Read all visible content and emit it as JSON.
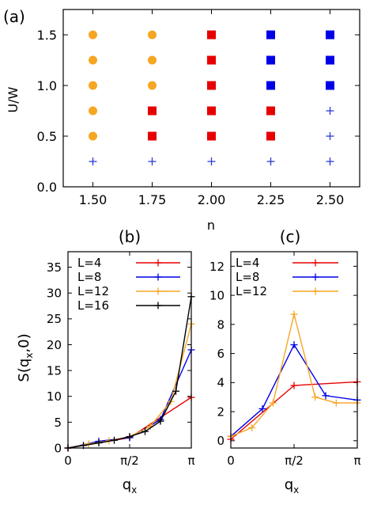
{
  "chart_data": [
    {
      "type": "scatter",
      "panel_label": "(a)",
      "xlabel": "n",
      "ylabel": "U/W",
      "xlim": [
        1.375,
        2.625
      ],
      "ylim": [
        0.0,
        1.75
      ],
      "xticks": [
        "1.50",
        "1.75",
        "2.00",
        "2.25",
        "2.50"
      ],
      "xtick_values": [
        1.5,
        1.75,
        2.0,
        2.25,
        2.5
      ],
      "yticks": [
        "0.0",
        "0.5",
        "1.0",
        "1.5"
      ],
      "ytick_values": [
        0.0,
        0.5,
        1.0,
        1.5
      ],
      "grid": false,
      "legend": "none",
      "series": [
        {
          "marker": "circle",
          "color": "#f5a623",
          "x": [
            1.5,
            1.5,
            1.5,
            1.5,
            1.5,
            1.75,
            1.75,
            1.75
          ],
          "y": [
            0.5,
            0.75,
            1.0,
            1.25,
            1.5,
            1.0,
            1.25,
            1.5
          ]
        },
        {
          "marker": "square",
          "color": "#e60000",
          "x": [
            1.75,
            1.75,
            2.0,
            2.0,
            2.0,
            2.0,
            2.0,
            2.25,
            2.25
          ],
          "y": [
            0.5,
            0.75,
            0.5,
            0.75,
            1.0,
            1.25,
            1.5,
            0.5,
            0.75
          ]
        },
        {
          "marker": "square",
          "color": "#0000e6",
          "x": [
            2.25,
            2.25,
            2.25,
            2.5,
            2.5,
            2.5
          ],
          "y": [
            1.0,
            1.25,
            1.5,
            1.0,
            1.25,
            1.5
          ]
        },
        {
          "marker": "plus",
          "color": "#2a3bcf",
          "x": [
            1.5,
            1.75,
            2.0,
            2.25,
            2.5,
            2.5,
            2.5
          ],
          "y": [
            0.25,
            0.25,
            0.25,
            0.25,
            0.25,
            0.5,
            0.75
          ]
        }
      ]
    },
    {
      "type": "line",
      "panel_label": "(b)",
      "xlabel_main": "q",
      "xlabel_sub": "x",
      "ylabel": "S(q",
      "ylabel_sub": "x",
      "ylabel_tail": ",0)",
      "xlim": [
        0,
        1
      ],
      "ylim": [
        0,
        38
      ],
      "xticks": [
        "0",
        "π/2",
        "π"
      ],
      "xtick_values": [
        0,
        0.5,
        1
      ],
      "yticks": [
        "0",
        "5",
        "10",
        "15",
        "20",
        "25",
        "30",
        "35"
      ],
      "ytick_values": [
        0,
        5,
        10,
        15,
        20,
        25,
        30,
        35
      ],
      "x_unit": "π",
      "legend": "top-left",
      "series": [
        {
          "name": "L=4",
          "color": "#e60000",
          "x": [
            0,
            0.5,
            1
          ],
          "y": [
            0,
            2,
            9.8
          ]
        },
        {
          "name": "L=8",
          "color": "#0000e6",
          "x": [
            0,
            0.25,
            0.5,
            0.75,
            1
          ],
          "y": [
            0,
            1.3,
            2,
            5.5,
            19
          ]
        },
        {
          "name": "L=12",
          "color": "#f5a623",
          "x": [
            0,
            0.1667,
            0.3333,
            0.5,
            0.6667,
            0.8333,
            1
          ],
          "y": [
            0,
            0.8,
            1.4,
            2.2,
            4.2,
            9,
            24
          ]
        },
        {
          "name": "L=16",
          "color": "#000000",
          "x": [
            0,
            0.125,
            0.25,
            0.375,
            0.5,
            0.625,
            0.75,
            0.875,
            1
          ],
          "y": [
            0,
            0.5,
            1,
            1.5,
            2.2,
            3.2,
            5.2,
            11,
            29.3
          ]
        }
      ]
    },
    {
      "type": "line",
      "panel_label": "(c)",
      "xlabel_main": "q",
      "xlabel_sub": "x",
      "xlim": [
        0,
        1
      ],
      "ylim": [
        -0.5,
        13
      ],
      "xticks": [
        "0",
        "π/2",
        "π"
      ],
      "xtick_values": [
        0,
        0.5,
        1
      ],
      "yticks": [
        "0",
        "2",
        "4",
        "6",
        "8",
        "10",
        "12"
      ],
      "ytick_values": [
        0,
        2,
        4,
        6,
        8,
        10,
        12
      ],
      "x_unit": "π",
      "legend": "top-left",
      "series": [
        {
          "name": "L=4",
          "color": "#e60000",
          "x": [
            0,
            0.5,
            1
          ],
          "y": [
            0.1,
            3.8,
            4.05
          ]
        },
        {
          "name": "L=8",
          "color": "#0000e6",
          "x": [
            0,
            0.25,
            0.5,
            0.75,
            1
          ],
          "y": [
            0.3,
            2.2,
            6.6,
            3.1,
            2.8
          ]
        },
        {
          "name": "L=12",
          "color": "#f5a623",
          "x": [
            0,
            0.1667,
            0.3333,
            0.5,
            0.6667,
            0.8333,
            1
          ],
          "y": [
            0.3,
            0.9,
            2.6,
            8.7,
            3.0,
            2.6,
            2.6
          ]
        }
      ]
    }
  ]
}
